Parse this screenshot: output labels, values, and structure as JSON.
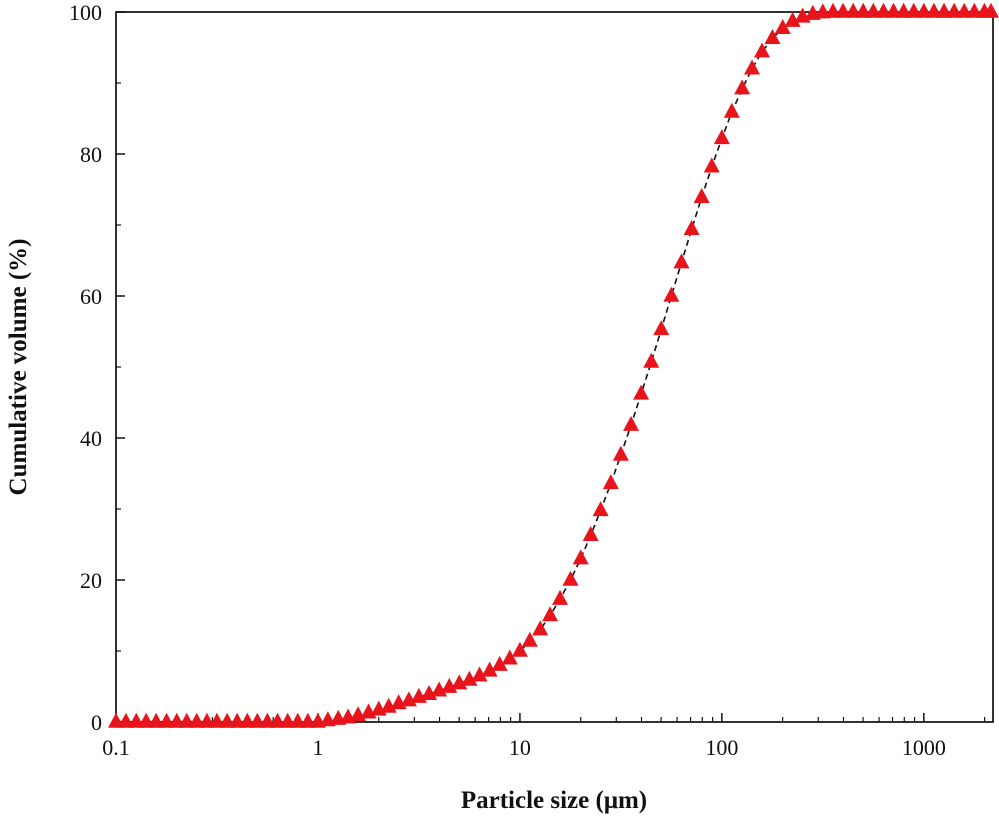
{
  "chart_data": {
    "type": "scatter",
    "title": "",
    "xlabel": "Particle size (μm)",
    "ylabel": "Cumulative volume (%)",
    "xscale": "log",
    "xlim": [
      0.1,
      2200
    ],
    "ylim": [
      0,
      100
    ],
    "xticks": [
      0.1,
      1,
      10,
      100,
      1000
    ],
    "xtick_labels": [
      "0.1",
      "1",
      "10",
      "100",
      "1000"
    ],
    "yticks": [
      0,
      20,
      40,
      60,
      80,
      100
    ],
    "ytick_labels": [
      "0",
      "20",
      "40",
      "60",
      "80",
      "100"
    ],
    "grid": false,
    "series": [
      {
        "name": "Cumulative volume",
        "marker": "triangle",
        "color": "#e8141c",
        "line_style": "dashed",
        "line_color": "#111111",
        "x": [
          0.1,
          0.112,
          0.126,
          0.141,
          0.158,
          0.178,
          0.2,
          0.224,
          0.251,
          0.282,
          0.316,
          0.355,
          0.398,
          0.447,
          0.501,
          0.562,
          0.631,
          0.708,
          0.794,
          0.891,
          1.0,
          1.12,
          1.26,
          1.41,
          1.58,
          1.78,
          2.0,
          2.24,
          2.51,
          2.82,
          3.16,
          3.55,
          3.98,
          4.47,
          5.01,
          5.62,
          6.31,
          7.08,
          7.94,
          8.91,
          10.0,
          11.2,
          12.6,
          14.1,
          15.8,
          17.8,
          20.0,
          22.4,
          25.1,
          28.2,
          31.6,
          35.5,
          39.8,
          44.7,
          50.1,
          56.2,
          63.1,
          70.8,
          79.4,
          89.1,
          100,
          112,
          126,
          141,
          158,
          178,
          200,
          224,
          251,
          282,
          316,
          355,
          398,
          447,
          501,
          562,
          631,
          708,
          794,
          891,
          1000,
          1122,
          1259,
          1413,
          1585,
          1778,
          1995,
          2150
        ],
        "y": [
          0,
          0,
          0,
          0,
          0,
          0,
          0,
          0,
          0,
          0,
          0,
          0,
          0,
          0,
          0,
          0,
          0,
          0,
          0,
          0,
          0,
          0.2,
          0.4,
          0.6,
          0.9,
          1.3,
          1.7,
          2.1,
          2.6,
          3.0,
          3.5,
          3.9,
          4.4,
          4.9,
          5.4,
          5.9,
          6.5,
          7.2,
          8.0,
          8.9,
          10.0,
          11.4,
          13.0,
          15.0,
          17.3,
          20.0,
          23.0,
          26.3,
          29.8,
          33.6,
          37.6,
          41.8,
          46.2,
          50.7,
          55.3,
          60.0,
          64.7,
          69.4,
          73.9,
          78.2,
          82.2,
          85.9,
          89.2,
          92.0,
          94.4,
          96.3,
          97.7,
          98.7,
          99.3,
          99.7,
          99.9,
          100,
          100,
          100,
          100,
          100,
          100,
          100,
          100,
          100,
          100,
          100,
          100,
          100,
          100,
          100,
          100,
          100
        ]
      }
    ]
  }
}
